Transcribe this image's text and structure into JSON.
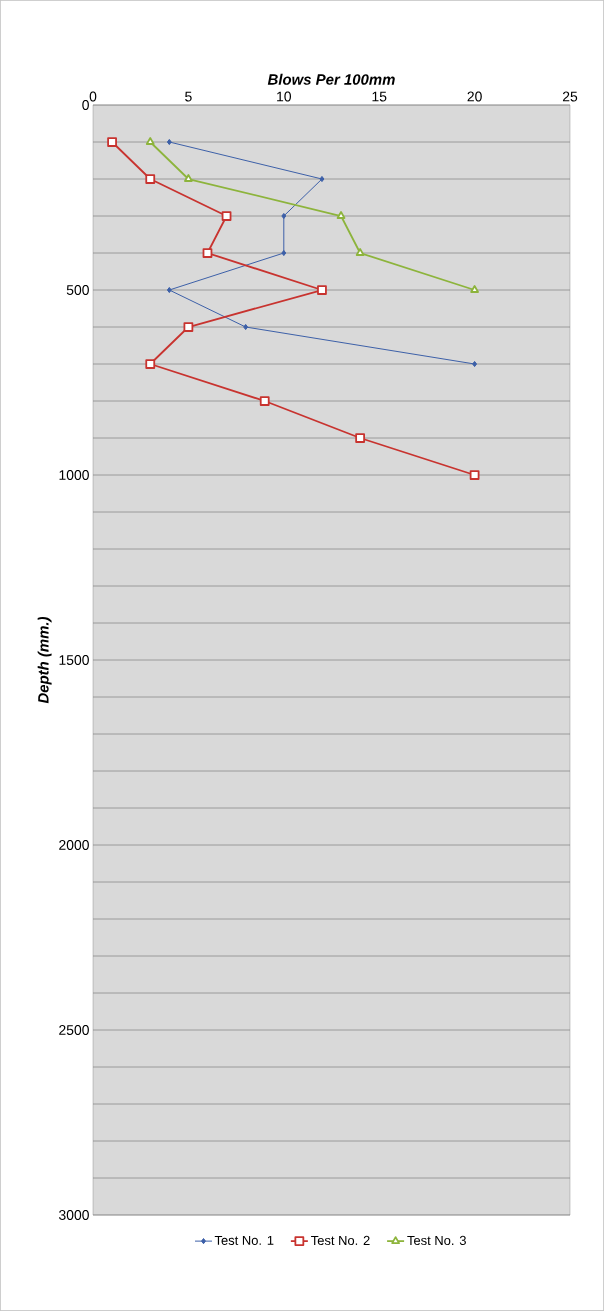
{
  "chart_data": {
    "type": "line",
    "xlabel": "Blows Per 100mm",
    "ylabel": "Depth (mm.)",
    "xlim": [
      0,
      25
    ],
    "xticks": [
      0,
      5,
      10,
      15,
      20,
      25
    ],
    "ylim": [
      3000,
      0
    ],
    "yticks": [
      0,
      {
        "value": 100,
        "label": null
      },
      {
        "value": 200,
        "label": null
      },
      {
        "value": 300,
        "label": null
      },
      {
        "value": 400,
        "label": null
      },
      500,
      {
        "value": 600,
        "label": null
      },
      {
        "value": 700,
        "label": null
      },
      {
        "value": 800,
        "label": null
      },
      {
        "value": 900,
        "label": null
      },
      1000,
      {
        "value": 1100,
        "label": null
      },
      {
        "value": 1200,
        "label": null
      },
      {
        "value": 1300,
        "label": null
      },
      {
        "value": 1400,
        "label": null
      },
      1500,
      {
        "value": 1600,
        "label": null
      },
      {
        "value": 1700,
        "label": null
      },
      {
        "value": 1800,
        "label": null
      },
      {
        "value": 1900,
        "label": null
      },
      2000,
      {
        "value": 2100,
        "label": null
      },
      {
        "value": 2200,
        "label": null
      },
      {
        "value": 2300,
        "label": null
      },
      {
        "value": 2400,
        "label": null
      },
      2500,
      {
        "value": 2600,
        "label": null
      },
      {
        "value": 2700,
        "label": null
      },
      {
        "value": 2800,
        "label": null
      },
      {
        "value": 2900,
        "label": null
      },
      3000
    ],
    "grid": "y",
    "legend": "bottom",
    "series": [
      {
        "name": "Test No. 1",
        "color": "#3c5fa8",
        "marker": "diamond",
        "x": [
          4,
          12,
          10,
          10,
          4,
          8,
          20
        ],
        "values": [
          100,
          200,
          300,
          400,
          500,
          600,
          700
        ]
      },
      {
        "name": "Test No. 2",
        "color": "#c8332f",
        "marker": "square",
        "x": [
          1,
          3,
          7,
          6,
          12,
          5,
          3,
          9,
          14,
          20
        ],
        "values": [
          100,
          200,
          300,
          400,
          500,
          600,
          700,
          800,
          900,
          1000
        ]
      },
      {
        "name": "Test No. 3",
        "color": "#8db43c",
        "marker": "triangle",
        "x": [
          3,
          5,
          13,
          14,
          20
        ],
        "values": [
          100,
          200,
          300,
          400,
          500
        ]
      }
    ]
  }
}
